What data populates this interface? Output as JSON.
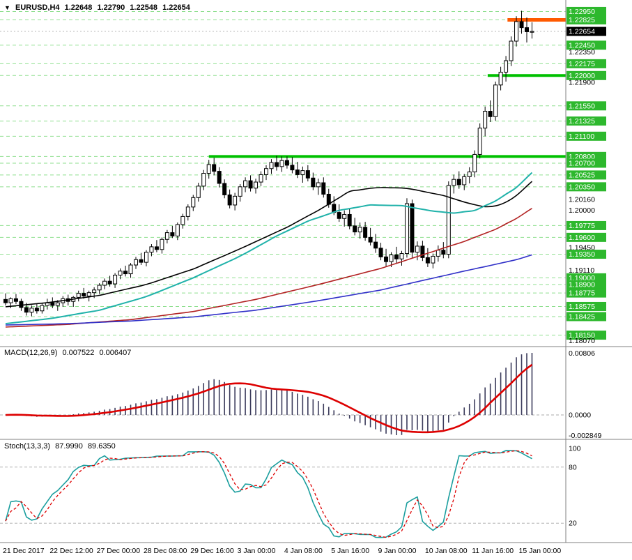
{
  "window": {
    "menu_icon": "▼",
    "title": "EURUSD,H4",
    "open": "1.22648",
    "high": "1.22790",
    "low": "1.22548",
    "close": "1.22654"
  },
  "colors": {
    "background": "#ffffff",
    "grid_level": "#8fdf8f",
    "level_green": "#00c000",
    "level_orange": "#ff5a00",
    "current_price_box": "#000000",
    "price_box_green": "#2db82d",
    "candle_up_fill": "#ffffff",
    "candle_down_fill": "#000000",
    "candle_border": "#000000",
    "ma_black": "#000000",
    "ma_cyan": "#20b2aa",
    "ma_red": "#b22222",
    "ma_blue": "#3030c8",
    "macd_hist": "#3c3c5c",
    "macd_signal": "#dd0000",
    "stoch_main": "#1a9e9e",
    "stoch_signal": "#dd0000",
    "separator": "#808080"
  },
  "macd_panel": {
    "label": "MACD(12,26,9)",
    "main_value": "0.007522",
    "signal_value": "0.006407",
    "axis_labels": [
      "0.00806",
      "0.0000",
      "-0.002849"
    ],
    "params": {
      "fast": 12,
      "slow": 26,
      "signal": 9
    }
  },
  "stoch_panel": {
    "label": "Stoch(13,3,3)",
    "k_value": "87.9990",
    "d_value": "89.6350",
    "axis_labels": [
      "100",
      "80",
      "20"
    ],
    "levels": [
      80,
      20
    ],
    "params": {
      "k": 13,
      "d": 3,
      "slowing": 3
    }
  },
  "price_scale": {
    "current": "1.22654",
    "labels": [
      {
        "text": "1.22950",
        "kind": "level"
      },
      {
        "text": "1.22825",
        "kind": "level"
      },
      {
        "text": "1.22654",
        "kind": "current"
      },
      {
        "text": "1.22450",
        "kind": "level"
      },
      {
        "text": "1.22350",
        "kind": "tick"
      },
      {
        "text": "1.22175",
        "kind": "level"
      },
      {
        "text": "1.22000",
        "kind": "level"
      },
      {
        "text": "1.21900",
        "kind": "tick"
      },
      {
        "text": "1.21550",
        "kind": "level"
      },
      {
        "text": "1.21325",
        "kind": "level"
      },
      {
        "text": "1.21100",
        "kind": "level"
      },
      {
        "text": "1.20800",
        "kind": "level"
      },
      {
        "text": "1.20700",
        "kind": "level"
      },
      {
        "text": "1.20525",
        "kind": "level"
      },
      {
        "text": "1.20350",
        "kind": "level"
      },
      {
        "text": "1.20160",
        "kind": "tick"
      },
      {
        "text": "1.20000",
        "kind": "tick"
      },
      {
        "text": "1.19775",
        "kind": "level"
      },
      {
        "text": "1.19600",
        "kind": "level"
      },
      {
        "text": "1.19450",
        "kind": "tick"
      },
      {
        "text": "1.19350",
        "kind": "level"
      },
      {
        "text": "1.19110",
        "kind": "tick"
      },
      {
        "text": "1.19000",
        "kind": "level"
      },
      {
        "text": "1.18900",
        "kind": "level"
      },
      {
        "text": "1.18775",
        "kind": "level"
      },
      {
        "text": "1.18575",
        "kind": "level"
      },
      {
        "text": "1.18425",
        "kind": "level"
      },
      {
        "text": "1.18150",
        "kind": "level"
      },
      {
        "text": "1.18070",
        "kind": "tick"
      }
    ]
  },
  "time_axis": {
    "labels": [
      {
        "bar": 0,
        "text": "21 Dec 2017"
      },
      {
        "bar": 9,
        "text": "22 Dec 12:00"
      },
      {
        "bar": 18,
        "text": "27 Dec 00:00"
      },
      {
        "bar": 27,
        "text": "28 Dec 08:00"
      },
      {
        "bar": 36,
        "text": "29 Dec 16:00"
      },
      {
        "bar": 45,
        "text": "3 Jan 00:00"
      },
      {
        "bar": 54,
        "text": "4 Jan 08:00"
      },
      {
        "bar": 63,
        "text": "5 Jan 16:00"
      },
      {
        "bar": 72,
        "text": "9 Jan 00:00"
      },
      {
        "bar": 81,
        "text": "10 Jan 08:00"
      },
      {
        "bar": 90,
        "text": "11 Jan 16:00"
      },
      {
        "bar": 99,
        "text": "15 Jan 00:00"
      }
    ]
  },
  "chart_data": {
    "type": "candlestick",
    "symbol": "EURUSD",
    "timeframe": "H4",
    "title": "EURUSD,H4 1.22648 1.22790 1.22548 1.22654",
    "price_range": {
      "min": 1.1798,
      "max": 1.2312
    },
    "grid_levels": [
      1.2295,
      1.22825,
      1.2245,
      1.22175,
      1.22,
      1.2155,
      1.21325,
      1.211,
      1.208,
      1.207,
      1.20525,
      1.2035,
      1.19775,
      1.196,
      1.1935,
      1.19,
      1.189,
      1.18775,
      1.18575,
      1.18425,
      1.1815
    ],
    "current_price": 1.22654,
    "candles": [
      [
        1.1868,
        1.1877,
        1.1859,
        1.1863
      ],
      [
        1.1863,
        1.1871,
        1.1855,
        1.1869
      ],
      [
        1.1869,
        1.1876,
        1.1861,
        1.1865
      ],
      [
        1.1865,
        1.1869,
        1.1851,
        1.1856
      ],
      [
        1.1856,
        1.1863,
        1.1844,
        1.1849
      ],
      [
        1.1849,
        1.1859,
        1.1843,
        1.1855
      ],
      [
        1.1855,
        1.1861,
        1.1847,
        1.1851
      ],
      [
        1.1851,
        1.1863,
        1.1847,
        1.1859
      ],
      [
        1.1859,
        1.1869,
        1.1853,
        1.1863
      ],
      [
        1.1863,
        1.1871,
        1.1855,
        1.1859
      ],
      [
        1.1859,
        1.1867,
        1.1851,
        1.1863
      ],
      [
        1.1863,
        1.1873,
        1.1857,
        1.1869
      ],
      [
        1.1869,
        1.1875,
        1.1859,
        1.1865
      ],
      [
        1.1865,
        1.1873,
        1.1857,
        1.1871
      ],
      [
        1.1871,
        1.1881,
        1.1865,
        1.1877
      ],
      [
        1.1877,
        1.1885,
        1.1869,
        1.1873
      ],
      [
        1.1873,
        1.1881,
        1.1865,
        1.1878
      ],
      [
        1.1878,
        1.1886,
        1.187,
        1.1882
      ],
      [
        1.1882,
        1.1892,
        1.1876,
        1.1889
      ],
      [
        1.1889,
        1.1899,
        1.1883,
        1.1895
      ],
      [
        1.1895,
        1.1903,
        1.1887,
        1.1891
      ],
      [
        1.1891,
        1.1907,
        1.1885,
        1.1904
      ],
      [
        1.1904,
        1.1914,
        1.1898,
        1.191
      ],
      [
        1.191,
        1.1918,
        1.1902,
        1.1906
      ],
      [
        1.1906,
        1.1922,
        1.19,
        1.1919
      ],
      [
        1.1919,
        1.1931,
        1.1913,
        1.1927
      ],
      [
        1.1927,
        1.1937,
        1.1919,
        1.1923
      ],
      [
        1.1923,
        1.1941,
        1.1917,
        1.1938
      ],
      [
        1.1938,
        1.195,
        1.1932,
        1.1946
      ],
      [
        1.1946,
        1.1956,
        1.1938,
        1.1942
      ],
      [
        1.1942,
        1.196,
        1.1936,
        1.1957
      ],
      [
        1.1957,
        1.1971,
        1.1951,
        1.1967
      ],
      [
        1.1967,
        1.1977,
        1.1959,
        1.1962
      ],
      [
        1.1962,
        1.1982,
        1.1956,
        1.1979
      ],
      [
        1.1979,
        1.1995,
        1.1973,
        1.1991
      ],
      [
        1.1991,
        1.2009,
        1.1985,
        1.2005
      ],
      [
        1.2005,
        1.2023,
        1.1999,
        1.2019
      ],
      [
        1.2019,
        1.2041,
        1.2013,
        1.2036
      ],
      [
        1.2036,
        1.206,
        1.203,
        1.2055
      ],
      [
        1.2055,
        1.2075,
        1.2047,
        1.2068
      ],
      [
        1.2068,
        1.2078,
        1.2052,
        1.2058
      ],
      [
        1.2058,
        1.2064,
        1.2034,
        1.204
      ],
      [
        1.204,
        1.2046,
        1.2018,
        1.2023
      ],
      [
        1.2023,
        1.2031,
        1.2003,
        1.2008
      ],
      [
        1.2008,
        1.2026,
        1.2,
        1.2021
      ],
      [
        1.2021,
        1.2039,
        1.2013,
        1.2035
      ],
      [
        1.2035,
        1.2049,
        1.2027,
        1.2044
      ],
      [
        1.2044,
        1.2052,
        1.2028,
        1.2033
      ],
      [
        1.2033,
        1.2047,
        1.2025,
        1.2042
      ],
      [
        1.2042,
        1.2058,
        1.2036,
        1.2053
      ],
      [
        1.2053,
        1.2067,
        1.2045,
        1.2062
      ],
      [
        1.2062,
        1.2076,
        1.2054,
        1.2071
      ],
      [
        1.2071,
        1.2081,
        1.2059,
        1.2065
      ],
      [
        1.2065,
        1.208,
        1.2057,
        1.2074
      ],
      [
        1.2074,
        1.208,
        1.2062,
        1.2067
      ],
      [
        1.2067,
        1.2079,
        1.2055,
        1.206
      ],
      [
        1.206,
        1.2072,
        1.2048,
        1.2053
      ],
      [
        1.2053,
        1.2065,
        1.2041,
        1.2059
      ],
      [
        1.2059,
        1.2067,
        1.2043,
        1.2048
      ],
      [
        1.2048,
        1.2056,
        1.203,
        1.2035
      ],
      [
        1.2035,
        1.2047,
        1.2023,
        1.2041
      ],
      [
        1.2041,
        1.2049,
        1.2019,
        1.2024
      ],
      [
        1.2024,
        1.2032,
        1.2004,
        1.2009
      ],
      [
        1.2009,
        1.2021,
        1.1993,
        1.1997
      ],
      [
        1.1997,
        1.2009,
        1.1983,
        1.1988
      ],
      [
        1.1988,
        1.2,
        1.1976,
        1.1994
      ],
      [
        1.1994,
        1.2002,
        1.1972,
        1.1977
      ],
      [
        1.1977,
        1.1989,
        1.1963,
        1.1968
      ],
      [
        1.1968,
        1.1982,
        1.1958,
        1.1975
      ],
      [
        1.1975,
        1.1983,
        1.1955,
        1.196
      ],
      [
        1.196,
        1.1974,
        1.1948,
        1.1953
      ],
      [
        1.1953,
        1.1965,
        1.1937,
        1.1944
      ],
      [
        1.1944,
        1.1952,
        1.1926,
        1.1931
      ],
      [
        1.1931,
        1.1943,
        1.1917,
        1.1924
      ],
      [
        1.1924,
        1.1938,
        1.1916,
        1.1934
      ],
      [
        1.1934,
        1.1946,
        1.1922,
        1.1928
      ],
      [
        1.1928,
        1.194,
        1.1918,
        1.1936
      ],
      [
        1.1936,
        1.2018,
        1.193,
        1.201
      ],
      [
        1.201,
        1.2016,
        1.193,
        1.1938
      ],
      [
        1.1938,
        1.1954,
        1.1926,
        1.1947
      ],
      [
        1.1947,
        1.1955,
        1.1925,
        1.193
      ],
      [
        1.193,
        1.1944,
        1.1916,
        1.1922
      ],
      [
        1.1922,
        1.1936,
        1.1914,
        1.1932
      ],
      [
        1.1932,
        1.1948,
        1.1924,
        1.1941
      ],
      [
        1.1941,
        1.1953,
        1.1929,
        1.1935
      ],
      [
        1.1935,
        1.2043,
        1.1929,
        1.2037
      ],
      [
        1.2037,
        1.2053,
        1.2025,
        1.2046
      ],
      [
        1.2046,
        1.2058,
        1.2032,
        1.2038
      ],
      [
        1.2038,
        1.2054,
        1.203,
        1.205
      ],
      [
        1.205,
        1.2064,
        1.204,
        1.2057
      ],
      [
        1.2057,
        1.2089,
        1.2049,
        1.2083
      ],
      [
        1.2083,
        1.2129,
        1.2077,
        1.2122
      ],
      [
        1.2122,
        1.2154,
        1.211,
        1.2147
      ],
      [
        1.2147,
        1.2163,
        1.2131,
        1.2139
      ],
      [
        1.2139,
        1.2191,
        1.2133,
        1.2186
      ],
      [
        1.2186,
        1.2213,
        1.2178,
        1.2205
      ],
      [
        1.2205,
        1.2229,
        1.2191,
        1.2222
      ],
      [
        1.2222,
        1.2258,
        1.2214,
        1.2251
      ],
      [
        1.2251,
        1.2288,
        1.2243,
        1.228
      ],
      [
        1.228,
        1.2296,
        1.2262,
        1.2271
      ],
      [
        1.2271,
        1.2286,
        1.2249,
        1.2265
      ],
      [
        1.22648,
        1.2279,
        1.22548,
        1.22654
      ]
    ],
    "moving_averages": [
      {
        "name": "ma-black",
        "color": "#000000",
        "width": 1.6,
        "points": [
          [
            0,
            1.1857
          ],
          [
            9,
            1.1864
          ],
          [
            18,
            1.1874
          ],
          [
            27,
            1.189
          ],
          [
            36,
            1.1913
          ],
          [
            45,
            1.1943
          ],
          [
            54,
            1.1975
          ],
          [
            60,
            1.2
          ],
          [
            66,
            1.2028
          ],
          [
            71,
            1.2034
          ],
          [
            77,
            1.2033
          ],
          [
            84,
            1.2022
          ],
          [
            89,
            1.201
          ],
          [
            93,
            1.2004
          ],
          [
            97,
            1.2015
          ],
          [
            101,
            1.2043
          ]
        ]
      },
      {
        "name": "ma-cyan",
        "color": "#20b2aa",
        "width": 2,
        "points": [
          [
            0,
            1.1832
          ],
          [
            9,
            1.184
          ],
          [
            18,
            1.1852
          ],
          [
            27,
            1.1872
          ],
          [
            36,
            1.19
          ],
          [
            45,
            1.1932
          ],
          [
            52,
            1.1962
          ],
          [
            58,
            1.1984
          ],
          [
            64,
            1.2
          ],
          [
            70,
            1.2008
          ],
          [
            76,
            1.2007
          ],
          [
            82,
            1.1999
          ],
          [
            86,
            1.1996
          ],
          [
            90,
            1.2
          ],
          [
            94,
            1.2014
          ],
          [
            98,
            1.2034
          ],
          [
            101,
            1.2056
          ]
        ]
      },
      {
        "name": "ma-red",
        "color": "#b22222",
        "width": 1.6,
        "points": [
          [
            0,
            1.1827
          ],
          [
            12,
            1.1831
          ],
          [
            24,
            1.1838
          ],
          [
            36,
            1.185
          ],
          [
            48,
            1.1868
          ],
          [
            60,
            1.189
          ],
          [
            72,
            1.1914
          ],
          [
            80,
            1.1934
          ],
          [
            88,
            1.1954
          ],
          [
            94,
            1.1972
          ],
          [
            98,
            1.1988
          ],
          [
            101,
            1.2003
          ]
        ]
      },
      {
        "name": "ma-blue",
        "color": "#3030c8",
        "width": 1.6,
        "points": [
          [
            0,
            1.183
          ],
          [
            12,
            1.1832
          ],
          [
            24,
            1.1836
          ],
          [
            36,
            1.1842
          ],
          [
            48,
            1.1852
          ],
          [
            60,
            1.1866
          ],
          [
            72,
            1.1882
          ],
          [
            80,
            1.1896
          ],
          [
            88,
            1.191
          ],
          [
            94,
            1.192
          ],
          [
            98,
            1.1927
          ],
          [
            101,
            1.1934
          ]
        ]
      }
    ],
    "level_lines": [
      {
        "price": 1.22825,
        "from_bar": 96.3,
        "color": "#ff5a00",
        "width": 5
      },
      {
        "price": 1.22,
        "from_bar": 92.5,
        "color": "#00c000",
        "width": 4
      },
      {
        "price": 1.208,
        "from_bar": 39.0,
        "color": "#00c000",
        "width": 4
      }
    ]
  }
}
